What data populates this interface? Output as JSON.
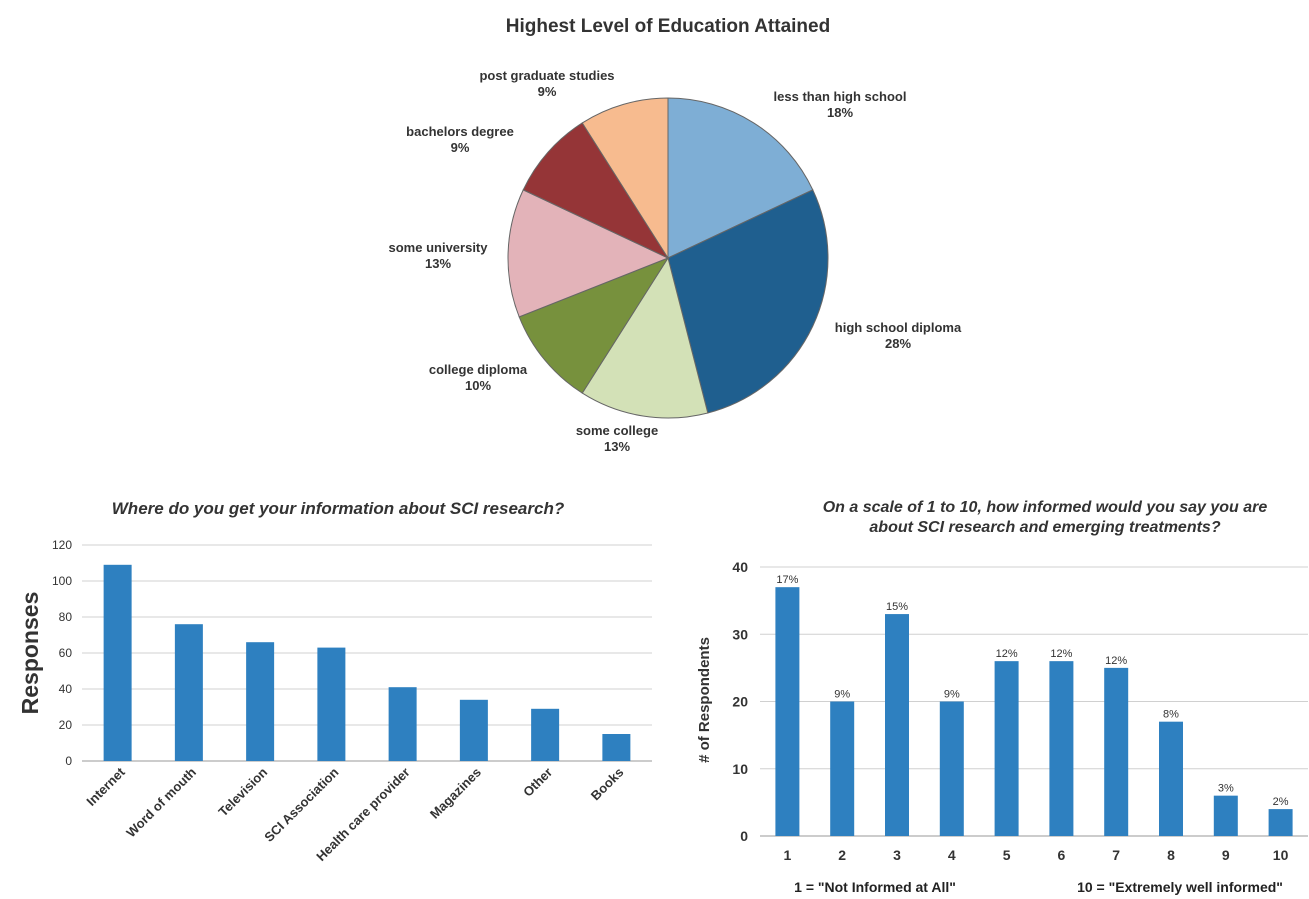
{
  "chart_data": [
    {
      "type": "pie",
      "title": "Highest Level of Education Attained",
      "slices": [
        {
          "label": "less than high school",
          "value": 18,
          "display": "18%",
          "color": "#7eaed5"
        },
        {
          "label": "high school diploma",
          "value": 28,
          "display": "28%",
          "color": "#1f5f8f"
        },
        {
          "label": "some college",
          "value": 13,
          "display": "13%",
          "color": "#d3e1b7"
        },
        {
          "label": "college diploma",
          "value": 10,
          "display": "10%",
          "color": "#77913d"
        },
        {
          "label": "some university",
          "value": 13,
          "display": "13%",
          "color": "#e3b3b9"
        },
        {
          "label": "bachelors degree",
          "value": 9,
          "display": "9%",
          "color": "#953537"
        },
        {
          "label": "post graduate studies",
          "value": 9,
          "display": "9%",
          "color": "#f7bb8f"
        }
      ]
    },
    {
      "type": "bar",
      "title": "Where do you get your information about SCI research?",
      "ylabel": "Responses",
      "xlabel": "",
      "ylim": [
        0,
        120
      ],
      "yticks": [
        0,
        20,
        40,
        60,
        80,
        100,
        120
      ],
      "grid": true,
      "color": "#2e80c0",
      "categories": [
        "Internet",
        "Word of mouth",
        "Television",
        "SCI Association",
        "Health care provider",
        "Magazines",
        "Other",
        "Books"
      ],
      "values": [
        109,
        76,
        66,
        63,
        41,
        34,
        29,
        15
      ]
    },
    {
      "type": "bar",
      "title_lines": [
        "On a scale of 1 to 10, how informed would you say you are",
        "about SCI research and emerging treatments?"
      ],
      "ylabel": "# of Respondents",
      "xlabel": "",
      "ylim": [
        0,
        40
      ],
      "yticks": [
        0,
        10,
        20,
        30,
        40
      ],
      "grid": true,
      "color": "#2e80c0",
      "categories": [
        "1",
        "2",
        "3",
        "4",
        "5",
        "6",
        "7",
        "8",
        "9",
        "10"
      ],
      "values": [
        37,
        20,
        33,
        20,
        26,
        26,
        25,
        17,
        6,
        4
      ],
      "data_labels": [
        "17%",
        "9%",
        "15%",
        "9%",
        "12%",
        "12%",
        "12%",
        "8%",
        "3%",
        "2%"
      ],
      "notes": [
        "1 = \"Not Informed at All\"",
        "10 = \"Extremely well informed\""
      ]
    }
  ]
}
